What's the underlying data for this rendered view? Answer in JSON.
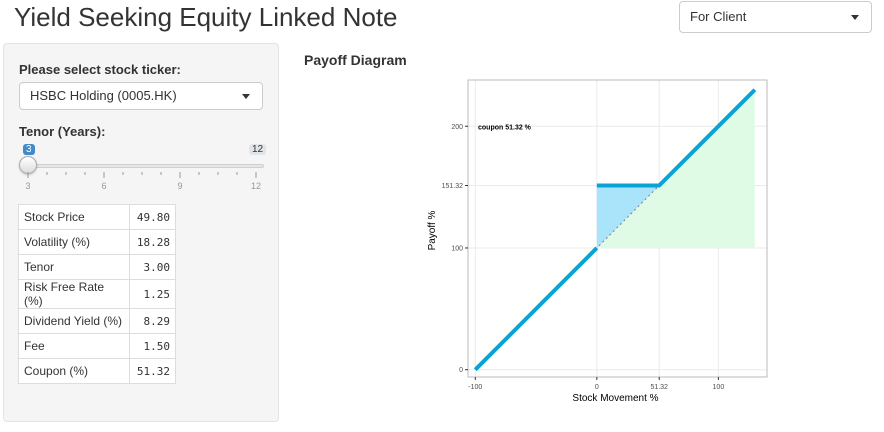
{
  "app": {
    "title": "Yield Seeking Equity Linked Note"
  },
  "view_select": {
    "value": "For Client"
  },
  "sidebar": {
    "ticker_label": "Please select stock ticker:",
    "ticker_value": "HSBC Holding (0005.HK)",
    "tenor_label": "Tenor (Years):",
    "tenor_value": "3",
    "tenor_max": "12",
    "tenor_min": "3",
    "tenor_value_fraction": 0,
    "grid_labels": [
      "3",
      "6",
      "9",
      "12"
    ]
  },
  "params": [
    {
      "key": "Stock Price",
      "value": "49.80"
    },
    {
      "key": "Volatility (%)",
      "value": "18.28"
    },
    {
      "key": "Tenor",
      "value": "3.00"
    },
    {
      "key": "Risk Free Rate (%)",
      "value": "1.25"
    },
    {
      "key": "Dividend Yield (%)",
      "value": "8.29"
    },
    {
      "key": "Fee",
      "value": "1.50"
    },
    {
      "key": "Coupon (%)",
      "value": "51.32"
    }
  ],
  "chart": {
    "section_title": "Payoff Diagram"
  },
  "chart_data": {
    "type": "line",
    "title": "",
    "annotation": "coupon 51.32 %",
    "xlabel": "Stock Movement %",
    "ylabel": "Payoff %",
    "xlim": [
      -106,
      140
    ],
    "ylim": [
      -6,
      238
    ],
    "x_ticks": [
      -100,
      0,
      51.32,
      100
    ],
    "x_tick_labels": [
      "-100",
      "0",
      "51.32",
      "100"
    ],
    "y_ticks": [
      0,
      100,
      151.32,
      200
    ],
    "y_tick_labels": [
      "0",
      "100",
      "151.32",
      "200"
    ],
    "grid": true,
    "series": [
      {
        "x": [
          -100,
          0
        ],
        "y": [
          0,
          100
        ]
      },
      {
        "x": [
          0,
          51.32,
          130
        ],
        "y": [
          151.32,
          151.32,
          230
        ]
      }
    ],
    "reference_line": {
      "x": [
        -100,
        130
      ],
      "y": [
        0,
        230
      ]
    },
    "shaded_regions": [
      {
        "x": [
          0,
          51.32
        ],
        "y_low": [
          100,
          151.32
        ],
        "y_high": [
          151.32,
          151.32
        ]
      },
      {
        "x": [
          0,
          130
        ],
        "y_low": [
          100,
          100
        ],
        "y_high": [
          100,
          230
        ]
      }
    ],
    "colors": {
      "line": "#0aa3d6",
      "coupon_fill": "#a9e4fb",
      "gain_fill": "#dffbe6",
      "ref_line": "#7f7f7f"
    }
  }
}
